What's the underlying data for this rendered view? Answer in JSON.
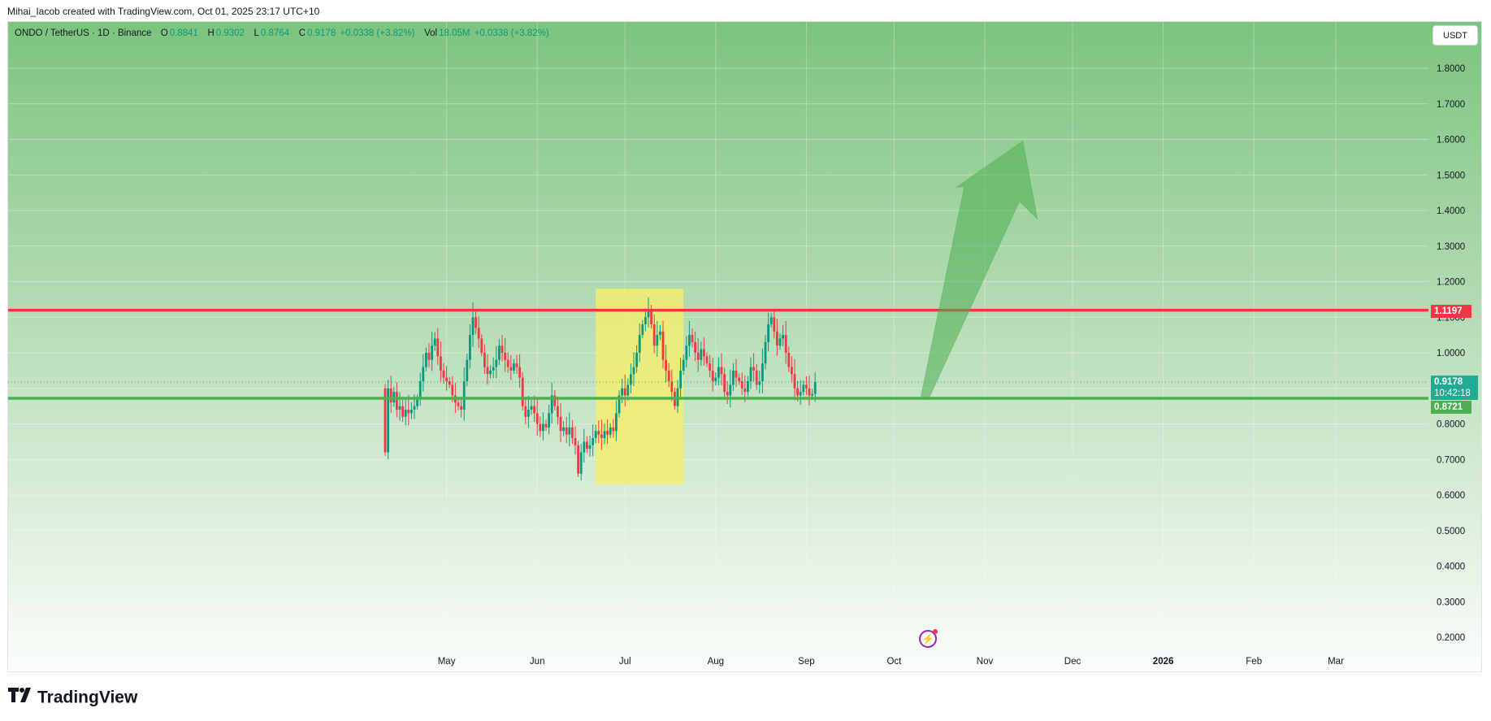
{
  "header": {
    "attribution": "Mihai_Iacob created with TradingView.com, Oct 01, 2025 23:17 UTC+10"
  },
  "legend": {
    "symbol": "ONDO / TetherUS · 1D · Binance",
    "o_label": "O",
    "o_value": "0.8841",
    "h_label": "H",
    "h_value": "0.9302",
    "l_label": "L",
    "l_value": "0.8764",
    "c_label": "C",
    "c_value": "0.9178",
    "change": "+0.0338 (+3.82%)",
    "vol_label": "Vol",
    "vol_value": "18.05M",
    "vol_change": "+0.0338 (+3.82%)"
  },
  "currency_button": "USDT",
  "price_tags": {
    "resistance": "1.1197",
    "last_price": "0.9178",
    "countdown": "10:42:18",
    "support": "0.8721"
  },
  "footer": {
    "brand": "TradingView"
  },
  "colors": {
    "up": "#089981",
    "down": "#f23645",
    "resistance": "#f23645",
    "support": "#4caf50",
    "highlight": "#f5ef6b",
    "arrow": "#4caf50",
    "background_top": "#7cc47e",
    "background_bottom": "#ffffff"
  },
  "chart_data": {
    "type": "candlestick",
    "symbol": "ONDO/USDT",
    "interval": "1D",
    "ylim": [
      0.17,
      1.95
    ],
    "yticks": [
      "0.2000",
      "0.3000",
      "0.4000",
      "0.5000",
      "0.6000",
      "0.7000",
      "0.8000",
      "0.9000",
      "1.0000",
      "1.1000",
      "1.2000",
      "1.3000",
      "1.4000",
      "1.5000",
      "1.6000",
      "1.7000",
      "1.8000"
    ],
    "x_range": [
      "2025-03-27",
      "2026-03-31"
    ],
    "xticks": [
      {
        "label": "May",
        "date": "2025-05-01"
      },
      {
        "label": "Jun",
        "date": "2025-06-01"
      },
      {
        "label": "Jul",
        "date": "2025-07-01"
      },
      {
        "label": "Aug",
        "date": "2025-08-01"
      },
      {
        "label": "Sep",
        "date": "2025-09-01"
      },
      {
        "label": "Oct",
        "date": "2025-10-01"
      },
      {
        "label": "Nov",
        "date": "2025-11-01"
      },
      {
        "label": "Dec",
        "date": "2025-12-01"
      },
      {
        "label": "2026",
        "date": "2026-01-01",
        "bold": true
      },
      {
        "label": "Feb",
        "date": "2026-02-01"
      },
      {
        "label": "Mar",
        "date": "2026-03-01"
      }
    ],
    "resistance": 1.1197,
    "support": 0.8721,
    "last_close": 0.9178,
    "highlight_zone": {
      "start": "2025-06-21",
      "end": "2025-07-21",
      "low": 0.63,
      "high": 1.18
    },
    "projection_arrow": {
      "start": {
        "date": "2025-10-10",
        "price": 0.87
      },
      "tip": {
        "date": "2025-11-14",
        "price": 1.6
      }
    },
    "closes": [
      0.72,
      0.9,
      0.86,
      0.89,
      0.84,
      0.85,
      0.82,
      0.84,
      0.83,
      0.84,
      0.85,
      0.87,
      0.92,
      0.96,
      1.0,
      0.98,
      1.02,
      1.04,
      0.99,
      0.95,
      0.93,
      0.92,
      0.91,
      0.88,
      0.86,
      0.85,
      0.84,
      0.92,
      0.98,
      1.05,
      1.1,
      1.07,
      1.04,
      1.0,
      0.96,
      0.94,
      0.95,
      0.96,
      0.98,
      1.02,
      1.0,
      0.98,
      0.96,
      0.95,
      0.97,
      0.96,
      0.93,
      0.85,
      0.82,
      0.84,
      0.85,
      0.83,
      0.8,
      0.78,
      0.8,
      0.79,
      0.83,
      0.88,
      0.85,
      0.82,
      0.78,
      0.79,
      0.77,
      0.79,
      0.76,
      0.74,
      0.66,
      0.72,
      0.75,
      0.73,
      0.74,
      0.76,
      0.78,
      0.77,
      0.76,
      0.78,
      0.77,
      0.79,
      0.78,
      0.83,
      0.88,
      0.9,
      0.88,
      0.91,
      0.94,
      0.96,
      1.0,
      1.05,
      1.08,
      1.1,
      1.12,
      1.08,
      1.02,
      1.05,
      1.06,
      0.98,
      0.95,
      0.92,
      0.89,
      0.85,
      0.9,
      0.95,
      0.98,
      1.02,
      1.05,
      1.03,
      1.0,
      0.98,
      1.01,
      0.99,
      0.97,
      0.95,
      0.92,
      0.93,
      0.96,
      0.94,
      0.89,
      0.88,
      0.91,
      0.95,
      0.93,
      0.92,
      0.9,
      0.89,
      0.92,
      0.96,
      0.95,
      0.91,
      0.92,
      0.97,
      1.03,
      1.08,
      1.1,
      1.06,
      1.02,
      1.04,
      1.05,
      1.0,
      0.96,
      0.94,
      0.9,
      0.88,
      0.89,
      0.91,
      0.9,
      0.88,
      0.8841,
      0.9178
    ]
  }
}
